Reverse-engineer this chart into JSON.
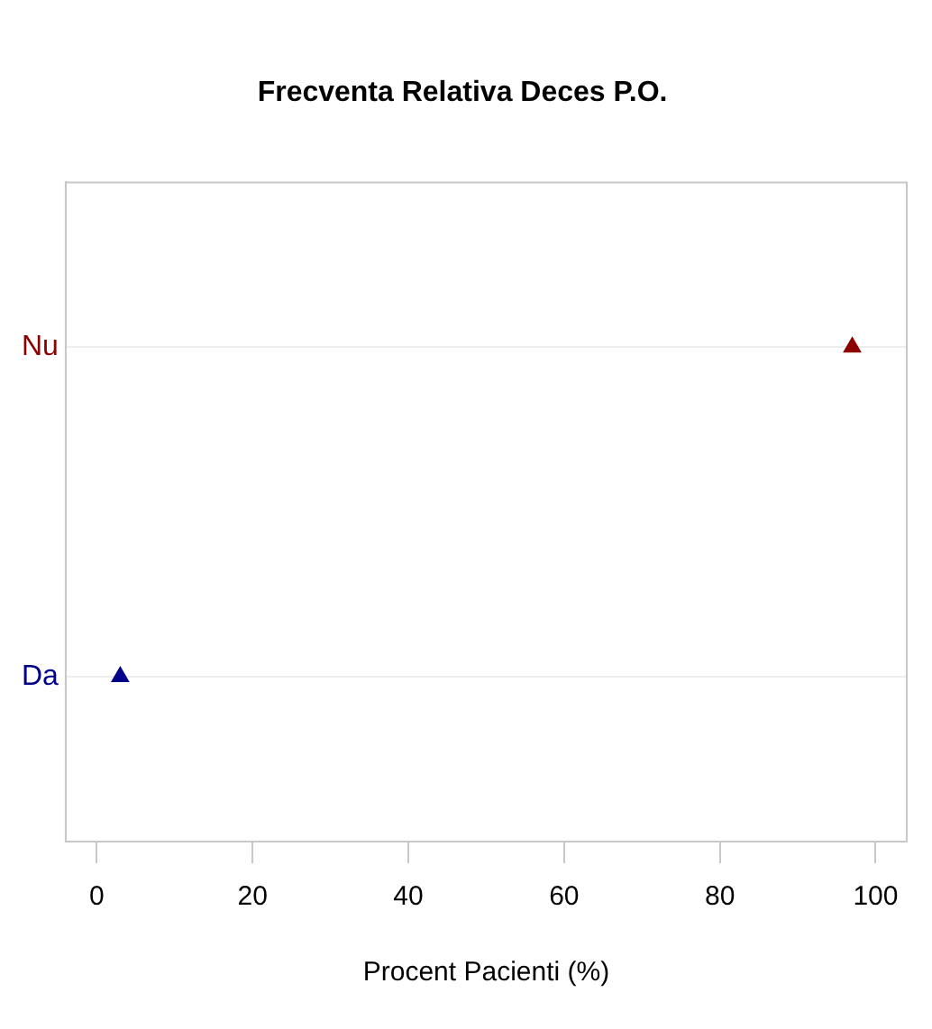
{
  "chart_data": {
    "type": "scatter",
    "orientation": "horizontal",
    "title": "Frecventa Relativa Deces P.O.",
    "xlabel": "Procent Pacienti (%)",
    "categories": [
      "Nu",
      "Da"
    ],
    "values": [
      97,
      3
    ],
    "colors": [
      "#8b0000",
      "#00008b"
    ],
    "marker": "triangle",
    "xlim": [
      -4,
      104
    ],
    "xticks": [
      0,
      20,
      40,
      60,
      80,
      100
    ],
    "grid": "y",
    "legend": false
  }
}
